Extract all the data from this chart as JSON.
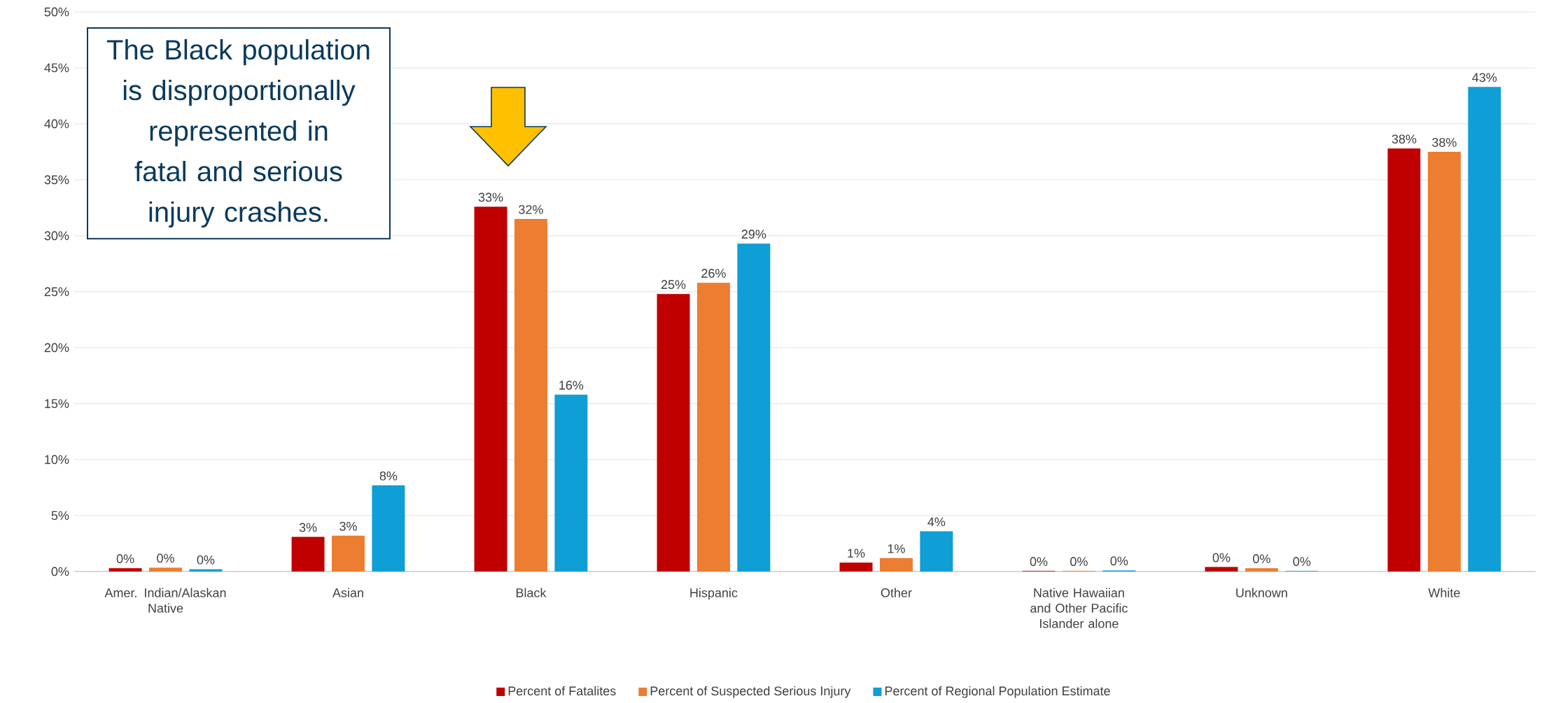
{
  "chart_data": {
    "type": "bar",
    "categories": [
      "Amer. Indian/Alaskan Native",
      "Asian",
      "Black",
      "Hispanic",
      "Other",
      "Native Hawaiian and Other Pacific Islander alone",
      "Unknown",
      "White"
    ],
    "series": [
      {
        "name": "Percent of Fatalites",
        "color": "#c00000",
        "values": [
          0.3,
          3.1,
          32.6,
          24.8,
          0.8,
          0.05,
          0.4,
          37.8
        ],
        "value_labels": [
          "0%",
          "3%",
          "33%",
          "25%",
          "1%",
          "0%",
          "0%",
          "38%"
        ]
      },
      {
        "name": "Percent of Suspected Serious Injury",
        "color": "#ed7d31",
        "values": [
          0.35,
          3.2,
          31.5,
          25.8,
          1.2,
          0.05,
          0.3,
          37.5
        ],
        "value_labels": [
          "0%",
          "3%",
          "32%",
          "26%",
          "1%",
          "0%",
          "0%",
          "38%"
        ]
      },
      {
        "name": "Percent of Regional Population Estimate",
        "color": "#0f9ed5",
        "values": [
          0.2,
          7.7,
          15.8,
          29.3,
          3.6,
          0.1,
          0.05,
          43.3
        ],
        "value_labels": [
          "0%",
          "8%",
          "16%",
          "29%",
          "4%",
          "0%",
          "0%",
          "43%"
        ]
      }
    ],
    "ylim": [
      0,
      50
    ],
    "yticks": [
      {
        "value": 0,
        "label": "0%"
      },
      {
        "value": 5,
        "label": "5%"
      },
      {
        "value": 10,
        "label": "10%"
      },
      {
        "value": 15,
        "label": "15%"
      },
      {
        "value": 20,
        "label": "20%"
      },
      {
        "value": 25,
        "label": "25%"
      },
      {
        "value": 30,
        "label": "30%"
      },
      {
        "value": 35,
        "label": "35%"
      },
      {
        "value": 40,
        "label": "40%"
      },
      {
        "value": 45,
        "label": "45%"
      },
      {
        "value": 50,
        "label": "50%"
      }
    ],
    "grid": "y",
    "legend": "bottom",
    "annotations": [
      "The Black population is disproportionally represented in fatal and serious injury crashes."
    ]
  }
}
